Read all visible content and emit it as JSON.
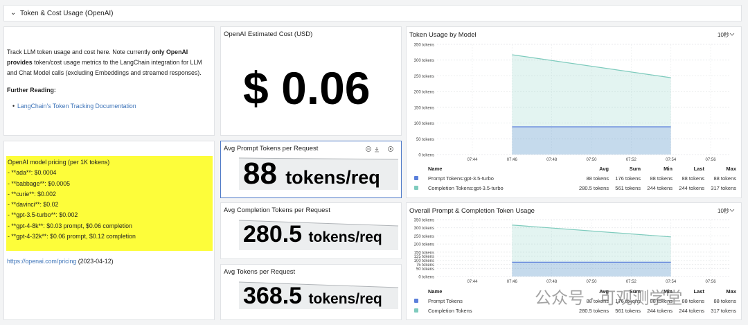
{
  "header": {
    "title": "Token & Cost Usage (OpenAI)"
  },
  "intro": {
    "text_before": "Track LLM token usage and cost here. Note currently ",
    "bold": "only OpenAI provides",
    "text_after": " token/cost usage metrics to the LangChain integration for LLM and Chat Model calls (excluding Embeddings and streamed responses).",
    "further_reading": "Further Reading:",
    "link": "LangChain's Token Tracking Documentation"
  },
  "pricing": {
    "lines": [
      "OpenAI model pricing (per 1K tokens)",
      "- **ada**: $0.0004",
      "- **babbage**: $0.0005",
      "- **curie**: $0.002",
      "- **davinci**: $0.02",
      "- **gpt-3.5-turbo**: $0.002",
      "- **gpt-4-8k**: $0.03 prompt, $0.06 completion",
      "- **gpt-4-32k**: $0.06 prompt, $0.12 completion"
    ],
    "link": "https://openai.com/pricing",
    "date": "(2023-04-12)"
  },
  "stats": [
    {
      "title": "OpenAI Estimated Cost (USD)",
      "prefix": "$",
      "value": 0.06
    },
    {
      "title": "Avg Prompt Tokens per Request",
      "value": 88,
      "unit": "tokens/req"
    },
    {
      "title": "Avg Completion Tokens per Request",
      "value": 280.5,
      "unit": "tokens/req"
    },
    {
      "title": "Avg Tokens per Request",
      "value": 368.5,
      "unit": "tokens/req"
    }
  ],
  "charts": [
    {
      "type": "area",
      "title": "Token Usage by Model",
      "refresh": "10秒",
      "x": [
        "07:46",
        "07:54"
      ],
      "xlim": [
        "07:43",
        "07:57"
      ],
      "xticks": [
        "07:44",
        "07:46",
        "07:48",
        "07:50",
        "07:52",
        "07:54",
        "07:56"
      ],
      "ylim": [
        0,
        350
      ],
      "yticks": [
        {
          "value": 0,
          "label": "0 tokens"
        },
        {
          "value": 50,
          "label": "50 tokens"
        },
        {
          "value": 100,
          "label": "100 tokens"
        },
        {
          "value": 150,
          "label": "150 tokens"
        },
        {
          "value": 200,
          "label": "200 tokens"
        },
        {
          "value": 250,
          "label": "250 tokens"
        },
        {
          "value": 300,
          "label": "300 tokens"
        },
        {
          "value": 350,
          "label": "350 tokens"
        }
      ],
      "grid": true,
      "series": [
        {
          "name": "Prompt Tokens:gpt-3.5-turbo",
          "color": "#5b7fdb",
          "values": [
            88,
            88
          ],
          "stats": [
            "88 tokens",
            "176 tokens",
            "88 tokens",
            "88 tokens",
            "88 tokens"
          ]
        },
        {
          "name": "Completion Tokens:gpt-3.5-turbo",
          "color": "#7ecbbd",
          "values": [
            317,
            244
          ],
          "stats": [
            "280.5 tokens",
            "561 tokens",
            "244 tokens",
            "244 tokens",
            "317 tokens"
          ]
        }
      ],
      "columns": [
        "Name",
        "Avg",
        "Sum",
        "Min",
        "Last",
        "Max"
      ]
    },
    {
      "type": "area",
      "title": "Overall Prompt & Completion Token Usage",
      "refresh": "10秒",
      "x": [
        "07:46",
        "07:54"
      ],
      "xlim": [
        "07:43",
        "07:57"
      ],
      "xticks": [
        "07:44",
        "07:46",
        "07:48",
        "07:50",
        "07:52",
        "07:54",
        "07:56"
      ],
      "ylim": [
        0,
        350
      ],
      "yticks": [
        {
          "value": 0,
          "label": "0 tokens"
        },
        {
          "value": 50,
          "label": "50 tokens"
        },
        {
          "value": 75,
          "label": "75 tokens"
        },
        {
          "value": 100,
          "label": "100 tokens"
        },
        {
          "value": 125,
          "label": "125 tokens"
        },
        {
          "value": 150,
          "label": "150 tokens"
        },
        {
          "value": 200,
          "label": "200 tokens"
        },
        {
          "value": 250,
          "label": "250 tokens"
        },
        {
          "value": 300,
          "label": "300 tokens"
        },
        {
          "value": 350,
          "label": "350 tokens"
        }
      ],
      "grid": true,
      "series": [
        {
          "name": "Prompt Tokens",
          "color": "#5b7fdb",
          "values": [
            88,
            88
          ],
          "stats": [
            "88 tokens",
            "176 tokens",
            "88 tokens",
            "88 tokens",
            "88 tokens"
          ]
        },
        {
          "name": "Completion Tokens",
          "color": "#7ecbbd",
          "values": [
            317,
            244
          ],
          "stats": [
            "280.5 tokens",
            "561 tokens",
            "244 tokens",
            "244 tokens",
            "317 tokens"
          ]
        }
      ],
      "columns": [
        "Name",
        "Avg",
        "Sum",
        "Min",
        "Last",
        "Max"
      ]
    }
  ],
  "watermark": "公众号 · 可观测学堂"
}
